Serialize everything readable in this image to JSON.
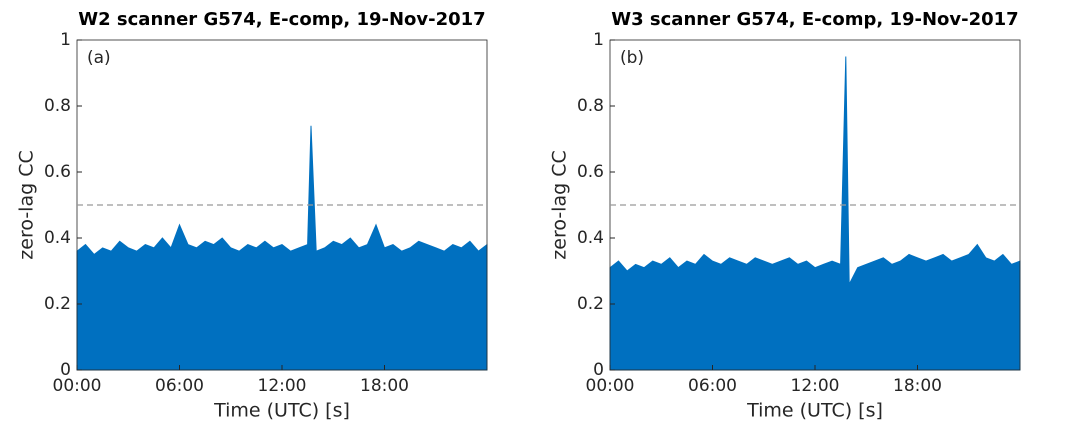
{
  "chart_data": [
    {
      "type": "area",
      "title": "W2 scanner G574, E-comp, 19-Nov-2017",
      "annotation": "(a)",
      "x_label": "Time (UTC) [s]",
      "y_label": "zero-lag CC",
      "color": "#0070c0",
      "xlim": [
        0,
        24
      ],
      "xticks": [
        {
          "value": 0,
          "label": "00:00"
        },
        {
          "value": 6,
          "label": "06:00"
        },
        {
          "value": 12,
          "label": "12:00"
        },
        {
          "value": 18,
          "label": "18:00"
        }
      ],
      "ylim": [
        0,
        1
      ],
      "yticks": [
        0,
        0.2,
        0.4,
        0.6,
        0.8,
        1
      ],
      "reference_line": 0.5,
      "x": [
        0,
        0.5,
        1,
        1.5,
        2,
        2.5,
        3,
        3.5,
        4,
        4.5,
        5,
        5.5,
        6,
        6.5,
        7,
        7.5,
        8,
        8.5,
        9,
        9.5,
        10,
        10.5,
        11,
        11.5,
        12,
        12.5,
        13,
        13.5,
        13.7,
        14,
        14.5,
        15,
        15.5,
        16,
        16.5,
        17,
        17.5,
        18,
        18.5,
        19,
        19.5,
        20,
        20.5,
        21,
        21.5,
        22,
        22.5,
        23,
        23.5,
        24
      ],
      "values": [
        0.36,
        0.38,
        0.35,
        0.37,
        0.36,
        0.39,
        0.37,
        0.36,
        0.38,
        0.37,
        0.4,
        0.37,
        0.44,
        0.38,
        0.37,
        0.39,
        0.38,
        0.4,
        0.37,
        0.36,
        0.38,
        0.37,
        0.39,
        0.37,
        0.38,
        0.36,
        0.37,
        0.38,
        0.74,
        0.36,
        0.37,
        0.39,
        0.38,
        0.4,
        0.37,
        0.38,
        0.44,
        0.37,
        0.38,
        0.36,
        0.37,
        0.39,
        0.38,
        0.37,
        0.36,
        0.38,
        0.37,
        0.39,
        0.36,
        0.38
      ]
    },
    {
      "type": "area",
      "title": "W3 scanner G574, E-comp, 19-Nov-2017",
      "annotation": "(b)",
      "x_label": "Time (UTC) [s]",
      "y_label": "zero-lag CC",
      "color": "#0070c0",
      "xlim": [
        0,
        24
      ],
      "xticks": [
        {
          "value": 0,
          "label": "00:00"
        },
        {
          "value": 6,
          "label": "06:00"
        },
        {
          "value": 12,
          "label": "12:00"
        },
        {
          "value": 18,
          "label": "18:00"
        }
      ],
      "ylim": [
        0,
        1
      ],
      "yticks": [
        0,
        0.2,
        0.4,
        0.6,
        0.8,
        1
      ],
      "reference_line": 0.5,
      "x": [
        0,
        0.5,
        1,
        1.5,
        2,
        2.5,
        3,
        3.5,
        4,
        4.5,
        5,
        5.5,
        6,
        6.5,
        7,
        7.5,
        8,
        8.5,
        9,
        9.5,
        10,
        10.5,
        11,
        11.5,
        12,
        12.5,
        13,
        13.5,
        13.8,
        14,
        14.5,
        15,
        15.5,
        16,
        16.5,
        17,
        17.5,
        18,
        18.5,
        19,
        19.5,
        20,
        20.5,
        21,
        21.5,
        22,
        22.5,
        23,
        23.5,
        24
      ],
      "values": [
        0.31,
        0.33,
        0.3,
        0.32,
        0.31,
        0.33,
        0.32,
        0.34,
        0.31,
        0.33,
        0.32,
        0.35,
        0.33,
        0.32,
        0.34,
        0.33,
        0.32,
        0.34,
        0.33,
        0.32,
        0.33,
        0.34,
        0.32,
        0.33,
        0.31,
        0.32,
        0.33,
        0.32,
        0.95,
        0.26,
        0.31,
        0.32,
        0.33,
        0.34,
        0.32,
        0.33,
        0.35,
        0.34,
        0.33,
        0.34,
        0.35,
        0.33,
        0.34,
        0.35,
        0.38,
        0.34,
        0.33,
        0.35,
        0.32,
        0.33
      ]
    }
  ]
}
